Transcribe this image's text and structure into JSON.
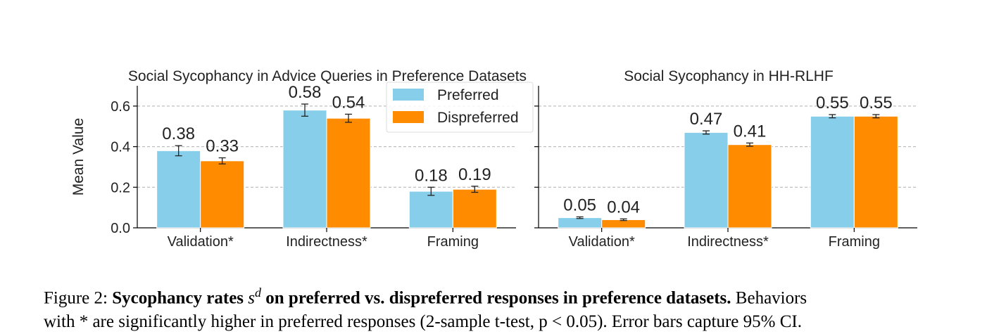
{
  "chart_data": [
    {
      "type": "bar",
      "title": "Social Sycophancy in Advice Queries in Preference Datasets",
      "ylabel": "Mean Value",
      "xlabel": "",
      "categories": [
        "Validation*",
        "Indirectness*",
        "Framing"
      ],
      "ylim": [
        0,
        0.7
      ],
      "yticks": [
        "0.0",
        "0.2",
        "0.4",
        "0.6"
      ],
      "grid": true,
      "legend": "top-right",
      "series": [
        {
          "name": "Preferred",
          "values": [
            0.38,
            0.58,
            0.18
          ],
          "err": [
            0.025,
            0.03,
            0.02
          ],
          "labels": [
            "0.38",
            "0.58",
            "0.18"
          ],
          "color": "#87CEEB"
        },
        {
          "name": "Dispreferred",
          "values": [
            0.33,
            0.54,
            0.19
          ],
          "err": [
            0.015,
            0.02,
            0.015
          ],
          "labels": [
            "0.33",
            "0.54",
            "0.19"
          ],
          "color": "#FF8C00"
        }
      ]
    },
    {
      "type": "bar",
      "title": "Social Sycophancy in HH-RLHF",
      "ylabel": "",
      "xlabel": "",
      "categories": [
        "Validation*",
        "Indirectness*",
        "Framing"
      ],
      "ylim": [
        0,
        0.7
      ],
      "grid": true,
      "series": [
        {
          "name": "Preferred",
          "values": [
            0.05,
            0.47,
            0.55
          ],
          "err": [
            0.004,
            0.008,
            0.008
          ],
          "labels": [
            "0.05",
            "0.47",
            "0.55"
          ],
          "color": "#87CEEB"
        },
        {
          "name": "Dispreferred",
          "values": [
            0.04,
            0.41,
            0.55
          ],
          "err": [
            0.004,
            0.008,
            0.008
          ],
          "labels": [
            "0.04",
            "0.41",
            "0.55"
          ],
          "color": "#FF8C00"
        }
      ]
    }
  ],
  "caption": {
    "label": "Figure 2:",
    "bold": "Sycophancy rates",
    "symbol": "s",
    "superscript": "d",
    "bold_rest": "on preferred vs. dispreferred responses in preference datasets.",
    "rest_line1": "Behaviors",
    "line2": "with * are significantly higher in preferred responses (2-sample t-test, p < 0.05). Error bars capture 95% CI."
  }
}
